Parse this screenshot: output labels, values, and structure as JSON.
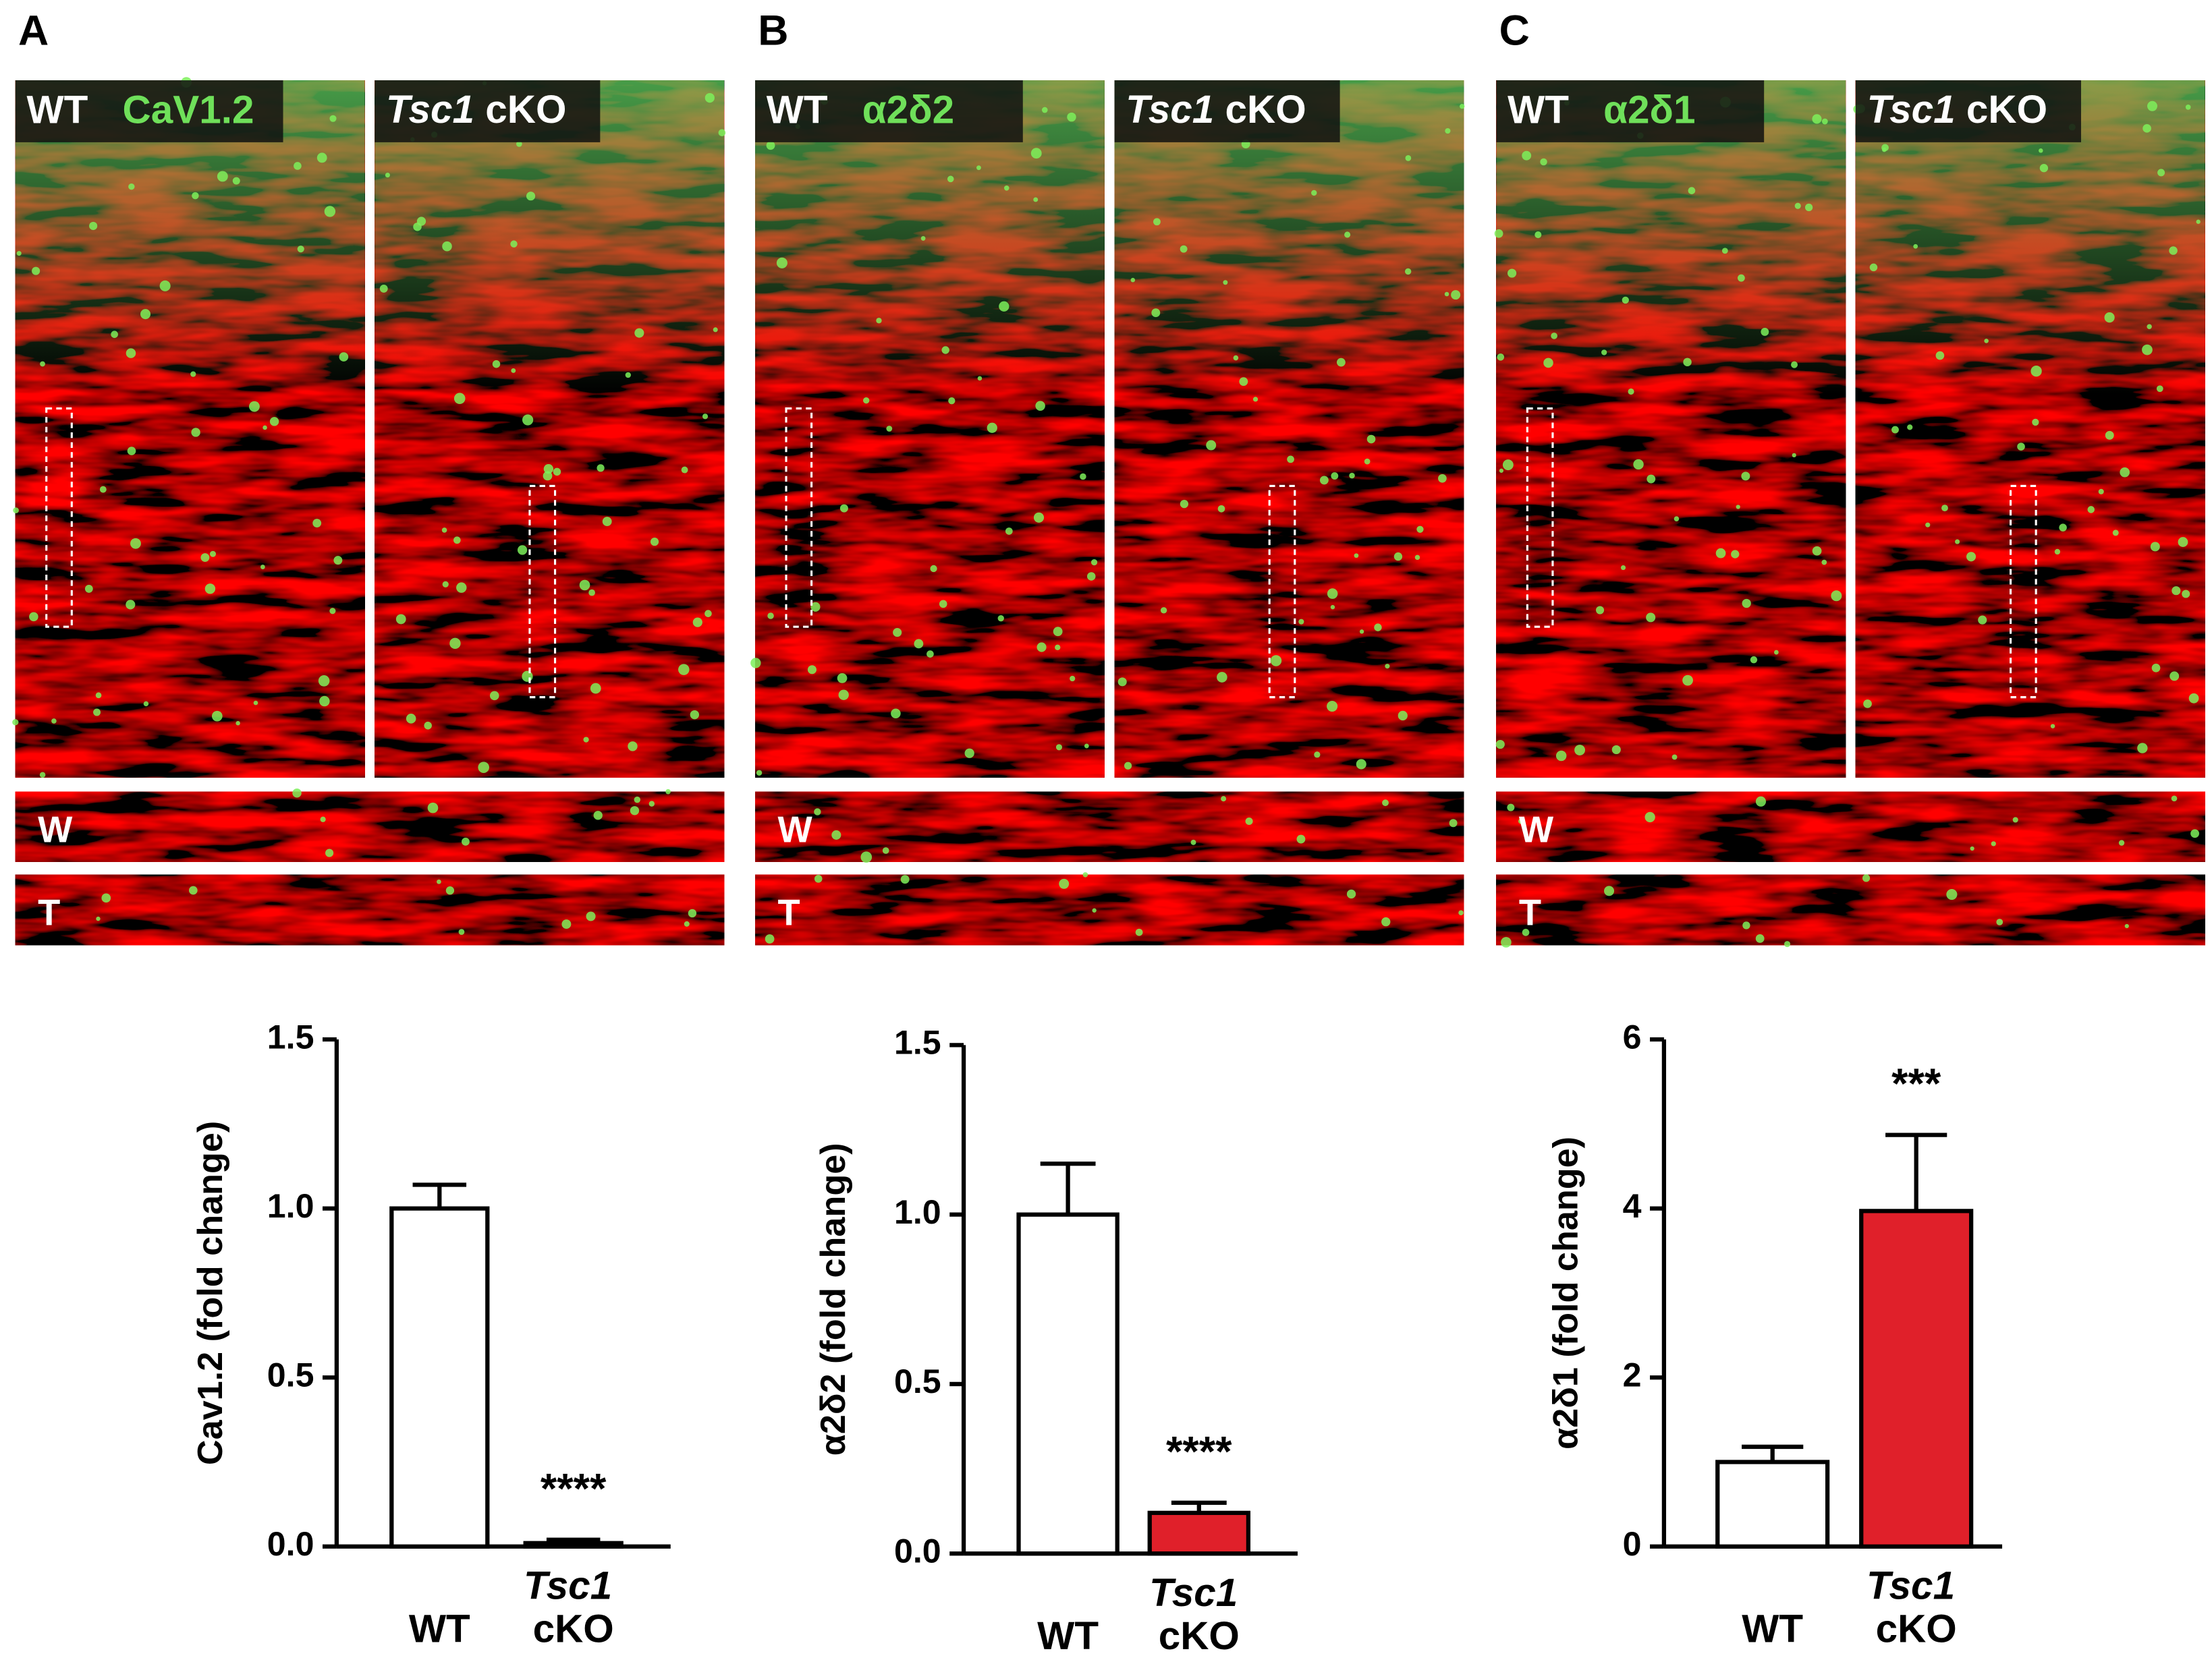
{
  "panels": [
    {
      "letter": "A",
      "wt_label": "WT",
      "marker": "CaV1.2",
      "cko_label": "Tsc1 cKO",
      "strips": [
        "W",
        "T"
      ]
    },
    {
      "letter": "B",
      "wt_label": "WT",
      "marker": "α2δ2",
      "cko_label": "Tsc1 cKO",
      "strips": [
        "W",
        "T"
      ]
    },
    {
      "letter": "C",
      "wt_label": "WT",
      "marker": "α2δ1",
      "cko_label": "Tsc1 cKO",
      "strips": [
        "W",
        "T"
      ]
    }
  ],
  "chart_data": [
    {
      "type": "bar",
      "y_label": "Cav1.2 (fold change)",
      "categories": [
        "WT",
        "Tsc1 cKO"
      ],
      "values": [
        1.0,
        0.01
      ],
      "errors": [
        0.07,
        0.01
      ],
      "colors": [
        "#ffffff",
        "#ffffff"
      ],
      "ylim": [
        0,
        1.5
      ],
      "yticks": [
        {
          "value": 0,
          "label": "0.0"
        },
        0.5,
        {
          "value": 1,
          "label": "1.0"
        },
        1.5
      ],
      "stars": "****"
    },
    {
      "type": "bar",
      "y_label": "α2δ2 (fold change)",
      "categories": [
        "WT",
        "Tsc1 cKO"
      ],
      "values": [
        1.0,
        0.12
      ],
      "errors": [
        0.15,
        0.03
      ],
      "colors": [
        "#ffffff",
        "#e0202a"
      ],
      "ylim": [
        0,
        1.5
      ],
      "yticks": [
        {
          "value": 0,
          "label": "0.0"
        },
        0.5,
        {
          "value": 1,
          "label": "1.0"
        },
        1.5
      ],
      "stars": "****"
    },
    {
      "type": "bar",
      "y_label": "α2δ1 (fold change)",
      "categories": [
        "WT",
        "Tsc1 cKO"
      ],
      "values": [
        1.0,
        3.97
      ],
      "errors": [
        0.18,
        0.9
      ],
      "colors": [
        "#ffffff",
        "#e0202a"
      ],
      "ylim": [
        0,
        6
      ],
      "yticks": [
        0,
        2,
        4,
        6
      ],
      "stars": "***"
    }
  ]
}
